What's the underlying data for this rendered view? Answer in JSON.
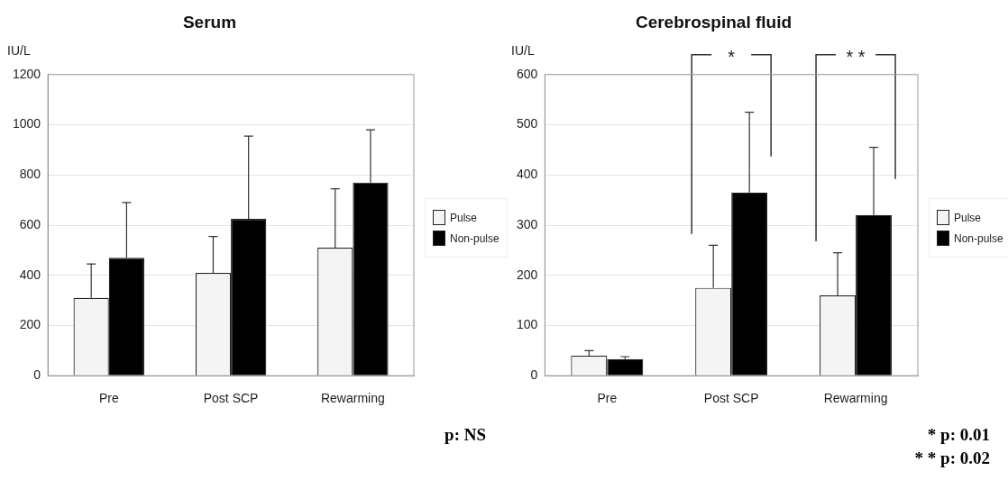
{
  "chart_data": [
    {
      "type": "bar",
      "title": "Serum",
      "ylabel": "IU/L",
      "categories": [
        "Pre",
        "Post SCP",
        "Rewarming"
      ],
      "series": [
        {
          "name": "Pulse",
          "color": "#f4f4f4",
          "values": [
            310,
            410,
            510
          ],
          "errors": [
            [
              310,
              445
            ],
            [
              410,
              555
            ],
            [
              510,
              745
            ]
          ]
        },
        {
          "name": "Non-pulse",
          "color": "#000000",
          "values": [
            470,
            625,
            770
          ],
          "errors": [
            [
              470,
              690
            ],
            [
              625,
              955
            ],
            [
              770,
              980
            ]
          ]
        }
      ],
      "ylim": [
        0,
        1200
      ],
      "yticks": [
        0,
        200,
        400,
        600,
        800,
        1000,
        1200
      ],
      "grid": "y",
      "legend": "right",
      "annotations": [
        "p: NS"
      ]
    },
    {
      "type": "bar",
      "title": "Cerebrospinal fluid",
      "ylabel": "IU/L",
      "categories": [
        "Pre",
        "Post SCP",
        "Rewarming"
      ],
      "series": [
        {
          "name": "Pulse",
          "color": "#f4f4f4",
          "values": [
            40,
            175,
            160
          ],
          "errors": [
            [
              40,
              50
            ],
            [
              175,
              260
            ],
            [
              160,
              245
            ]
          ]
        },
        {
          "name": "Non-pulse",
          "color": "#000000",
          "values": [
            33,
            365,
            320
          ],
          "errors": [
            [
              33,
              38
            ],
            [
              365,
              525
            ],
            [
              320,
              455
            ]
          ]
        }
      ],
      "ylim": [
        0,
        600
      ],
      "yticks": [
        0,
        100,
        200,
        300,
        400,
        500,
        600
      ],
      "grid": "y",
      "legend": "right",
      "annotations": [
        "*",
        "* *",
        "* p: 0.01",
        "* * p: 0.02"
      ]
    }
  ]
}
